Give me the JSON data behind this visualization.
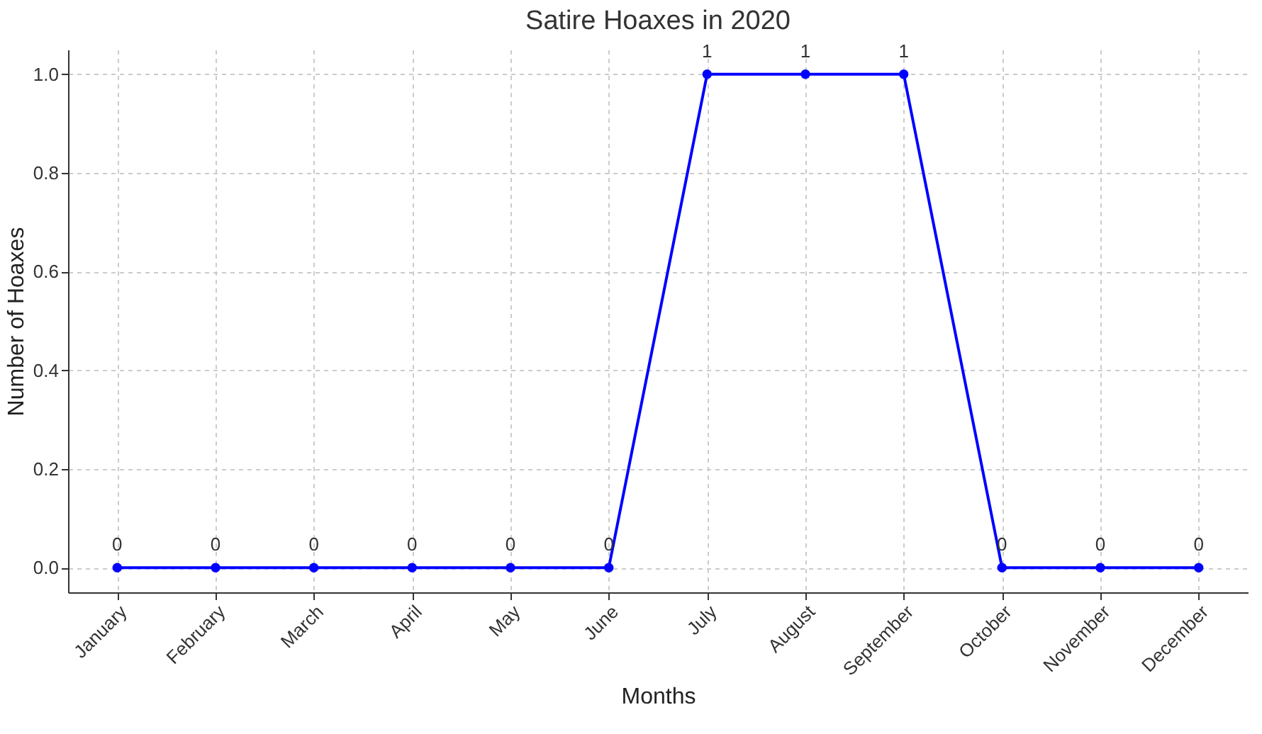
{
  "chart_data": {
    "type": "line",
    "title": "Satire Hoaxes in 2020",
    "xlabel": "Months",
    "ylabel": "Number of Hoaxes",
    "categories": [
      "January",
      "February",
      "March",
      "April",
      "May",
      "June",
      "July",
      "August",
      "September",
      "October",
      "November",
      "December"
    ],
    "values": [
      0,
      0,
      0,
      0,
      0,
      0,
      1,
      1,
      1,
      0,
      0,
      0
    ],
    "color": "#0000ff",
    "ylim": [
      -0.05,
      1.05
    ],
    "yticks": [
      {
        "value": 0,
        "label": "0.0"
      },
      {
        "value": 0.2,
        "label": "0.2"
      },
      {
        "value": 0.4,
        "label": "0.4"
      },
      {
        "value": 0.6,
        "label": "0.6"
      },
      {
        "value": 0.8,
        "label": "0.8"
      },
      {
        "value": 1,
        "label": "1.0"
      }
    ],
    "grid": true,
    "marker": "circle",
    "line_style": "solid",
    "data_labels": true
  }
}
